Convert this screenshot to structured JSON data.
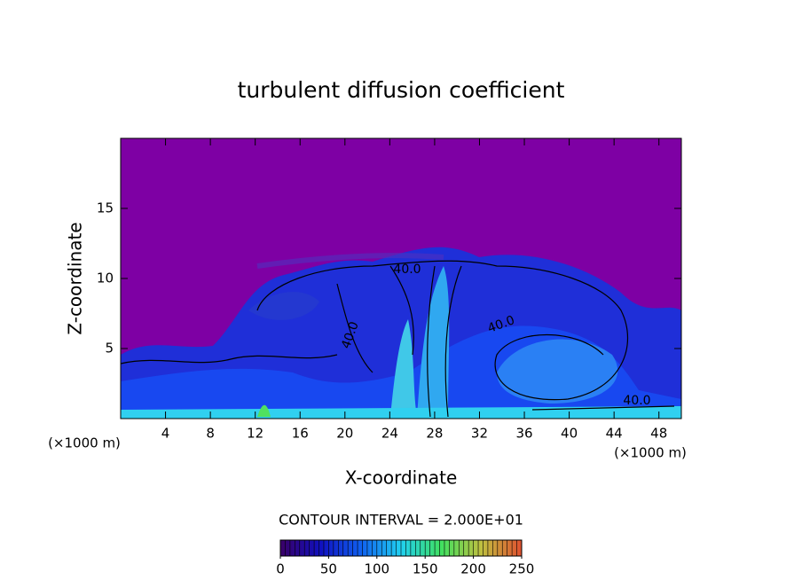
{
  "chart_data": {
    "type": "contour",
    "title": "turbulent diffusion coefficient",
    "xlabel": "X-coordinate",
    "ylabel": "Z-coordinate",
    "x_unit": "(×1000 m)",
    "y_unit": "(×1000 m)",
    "xlim": [
      0,
      50
    ],
    "ylim": [
      0,
      20
    ],
    "xticks": [
      4,
      8,
      12,
      16,
      20,
      24,
      28,
      32,
      36,
      40,
      44,
      48
    ],
    "yticks": [
      5,
      10,
      15
    ],
    "contour_labels": [
      "40.0",
      "40.0",
      "40.0",
      "40.0"
    ],
    "contour_interval_text": "CONTOUR INTERVAL = 2.000E+01",
    "colorbar_lim": [
      0,
      250
    ],
    "colorbar_ticks": [
      0,
      50,
      100,
      150,
      200,
      250
    ],
    "colormap": [
      "#3a0066",
      "#1010c0",
      "#1060f0",
      "#20d0f0",
      "#40e060",
      "#c0c040",
      "#e05030"
    ]
  }
}
